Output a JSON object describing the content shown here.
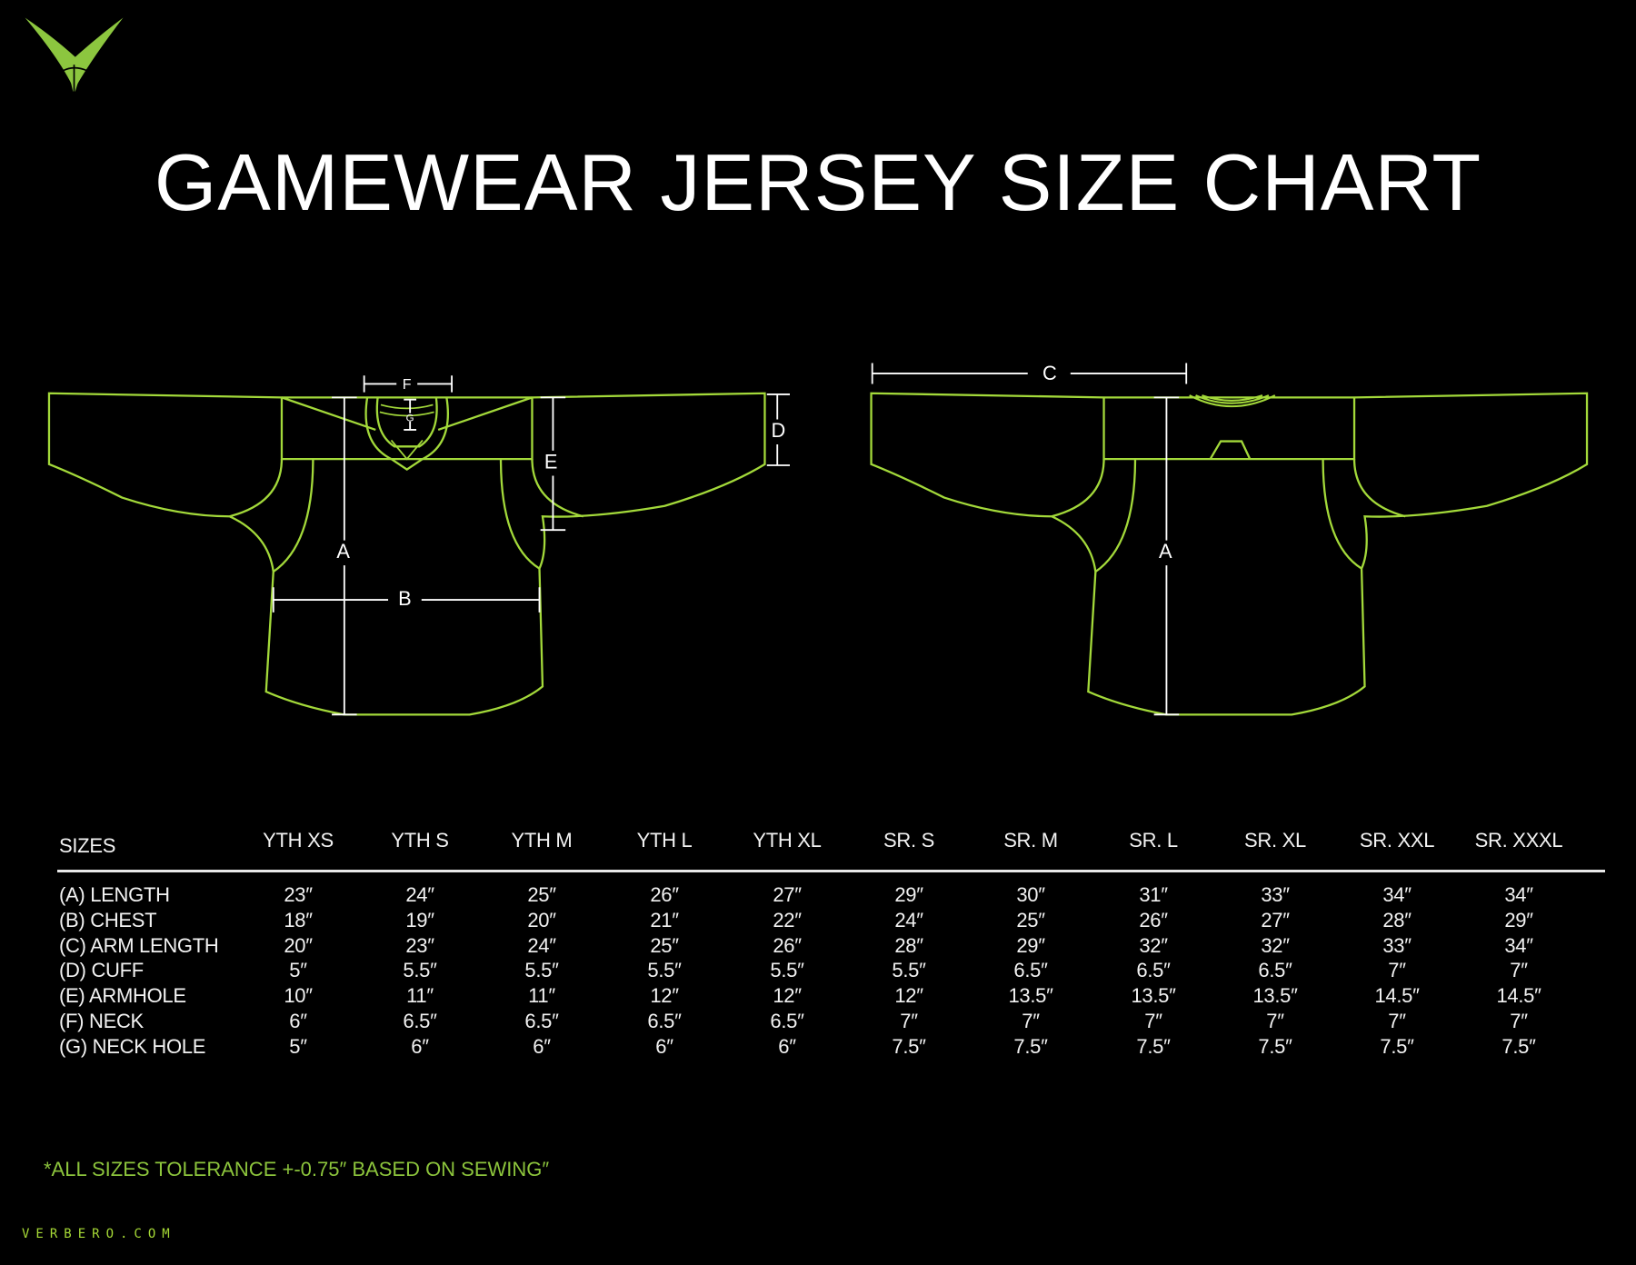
{
  "brand": {
    "logo": "verbero-v-logo",
    "website": "VERBERO.COM",
    "accent_color": "#a3d93a"
  },
  "title": "GAMEWEAR JERSEY SIZE CHART",
  "diagram": {
    "front_labels": {
      "a": "A",
      "b": "B",
      "d": "D",
      "e": "E",
      "f": "F",
      "g": "G"
    },
    "back_labels": {
      "a": "A",
      "c": "C"
    }
  },
  "table": {
    "header_label": "SIZES",
    "columns": [
      "YTH XS",
      "YTH S",
      "YTH M",
      "YTH L",
      "YTH XL",
      "SR. S",
      "SR. M",
      "SR. L",
      "SR. XL",
      "SR. XXL",
      "SR. XXXL"
    ],
    "rows": [
      {
        "label": "(A) LENGTH",
        "values": [
          "23″",
          "24″",
          "25″",
          "26″",
          "27″",
          "29″",
          "30″",
          "31″",
          "33″",
          "34″",
          "34″"
        ]
      },
      {
        "label": "(B) CHEST",
        "values": [
          "18″",
          "19″",
          "20″",
          "21″",
          "22″",
          "24″",
          "25″",
          "26″",
          "27″",
          "28″",
          "29″"
        ]
      },
      {
        "label": "(C) ARM LENGTH",
        "values": [
          "20″",
          "23″",
          "24″",
          "25″",
          "26″",
          "28″",
          "29″",
          "32″",
          "32″",
          "33″",
          "34″"
        ]
      },
      {
        "label": "(D) CUFF",
        "values": [
          "5″",
          "5.5″",
          "5.5″",
          "5.5″",
          "5.5″",
          "5.5″",
          "6.5″",
          "6.5″",
          "6.5″",
          "7″",
          "7″"
        ]
      },
      {
        "label": "(E) ARMHOLE",
        "values": [
          "10″",
          "11″",
          "11″",
          "12″",
          "12″",
          "12″",
          "13.5″",
          "13.5″",
          "13.5″",
          "14.5″",
          "14.5″"
        ]
      },
      {
        "label": "(F) NECK",
        "values": [
          "6″",
          "6.5″",
          "6.5″",
          "6.5″",
          "6.5″",
          "7″",
          "7″",
          "7″",
          "7″",
          "7″",
          "7″"
        ]
      },
      {
        "label": "(G) NECK HOLE",
        "values": [
          "5″",
          "6″",
          "6″",
          "6″",
          "6″",
          "7.5″",
          "7.5″",
          "7.5″",
          "7.5″",
          "7.5″",
          "7.5″"
        ]
      }
    ]
  },
  "footnote": "*ALL SIZES TOLERANCE +-0.75″ BASED ON SEWING″"
}
